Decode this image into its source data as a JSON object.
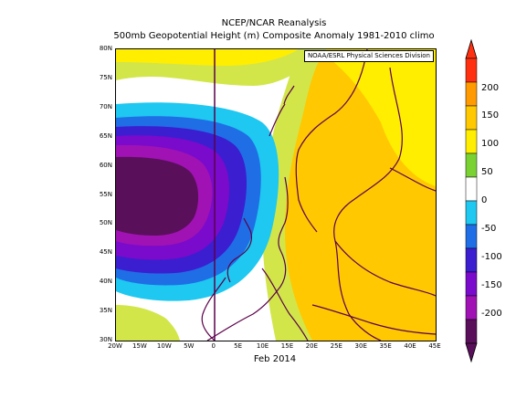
{
  "header": {
    "title": "NCEP/NCAR Reanalysis",
    "subtitle": "500mb Geopotential Height (m) Composite Anomaly 1981-2010 climo"
  },
  "map": {
    "credit": "NOAA/ESRL Physical Sciences Division",
    "date_label": "Feb 2014",
    "region": {
      "lon_min": -20,
      "lon_max": 45,
      "lat_min": 30,
      "lat_max": 80
    },
    "lat_labels": [
      "80N",
      "75N",
      "70N",
      "65N",
      "60N",
      "55N",
      "50N",
      "45N",
      "40N",
      "35N",
      "30N"
    ],
    "lon_labels": [
      "20W",
      "15W",
      "10W",
      "5W",
      "0",
      "5E",
      "10E",
      "15E",
      "20E",
      "25E",
      "30E",
      "35E",
      "40E",
      "45E"
    ],
    "anomaly_summary": {
      "negative_center": {
        "lon": -18,
        "lat": 55,
        "value_band": "<-200"
      },
      "positive_region": "eastern Europe and Arctic, +50 to +150"
    }
  },
  "colorbar": {
    "labels": [
      "200",
      "150",
      "100",
      "50",
      "0",
      "-50",
      "-100",
      "-150",
      "-200"
    ],
    "colors": [
      "#ff3010",
      "#ff9a00",
      "#ffc800",
      "#ffee00",
      "#7ad232",
      "#ffffff",
      "#1ec8f0",
      "#1f6ee6",
      "#3a1ed0",
      "#7a0acc",
      "#a012b4",
      "#5a0f5a"
    ]
  },
  "palette": {
    "band_m200": "#5a0f5a",
    "band_m150": "#a012b4",
    "band_m120": "#7a0acc",
    "band_m100": "#3a1ed0",
    "band_m75": "#1f6ee6",
    "band_m50": "#1ec8f0",
    "band_0": "#ffffff",
    "band_p25": "#7ad232",
    "band_p50": "#d2e64a",
    "band_p75": "#ffee00",
    "band_p100": "#ffc800",
    "coast": "#5a004a"
  }
}
